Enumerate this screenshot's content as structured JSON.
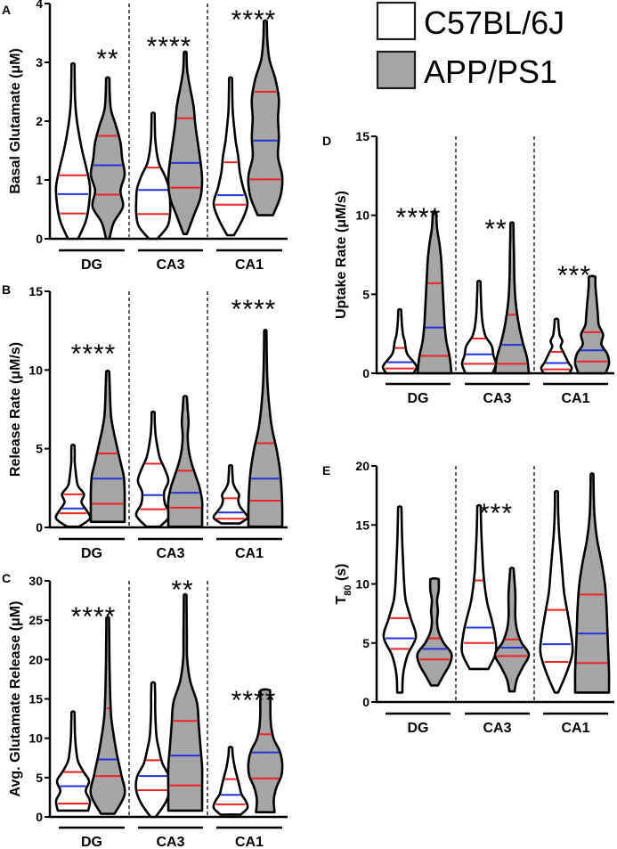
{
  "legend": {
    "items": [
      {
        "label": "C57BL/6J",
        "color": "#ffffff"
      },
      {
        "label": "APP/PS1",
        "color": "#a6a6a6"
      }
    ]
  },
  "colors": {
    "median": "#2233dd",
    "quartile": "#ee2222",
    "outline": "#000000",
    "wt_fill": "#ffffff",
    "app_fill": "#a6a6a6"
  },
  "chart_data": [
    {
      "panel": "A",
      "type": "violin",
      "ylabel": "Basal Glutamate (μM)",
      "ylim": [
        0,
        4
      ],
      "yticks": [
        0,
        1,
        2,
        3,
        4
      ],
      "categories": [
        "DG",
        "CA3",
        "CA1"
      ],
      "series": [
        {
          "name": "C57BL/6J",
          "values": [
            {
              "min": 0.0,
              "q1": 0.43,
              "median": 0.76,
              "q3": 1.08,
              "max": 2.97,
              "profile": [
                0.3,
                0.75,
                0.95,
                1,
                0.8,
                0.55,
                0.35,
                0.2,
                0.12,
                0.1,
                0.09
              ]
            },
            {
              "min": 0.0,
              "q1": 0.42,
              "median": 0.83,
              "q3": 1.21,
              "max": 2.13,
              "profile": [
                0.25,
                0.85,
                1,
                1,
                0.95,
                0.7,
                0.35,
                0.2,
                0.12,
                0.1,
                0.09
              ]
            },
            {
              "min": 0.06,
              "q1": 0.58,
              "median": 0.74,
              "q3": 1.3,
              "max": 2.73,
              "profile": [
                0.2,
                0.7,
                1,
                0.75,
                0.55,
                0.45,
                0.3,
                0.2,
                0.12,
                0.1,
                0.09
              ]
            }
          ]
        },
        {
          "name": "APP/PS1",
          "values": [
            {
              "min": 0.0,
              "q1": 0.75,
              "median": 1.25,
              "q3": 1.75,
              "max": 2.73,
              "profile": [
                0.1,
                0.35,
                0.9,
                0.75,
                1,
                0.85,
                0.75,
                0.5,
                0.2,
                0.12,
                0.1
              ]
            },
            {
              "min": 0.08,
              "q1": 0.87,
              "median": 1.29,
              "q3": 2.05,
              "max": 3.17,
              "profile": [
                0.1,
                0.5,
                0.9,
                1,
                0.9,
                0.75,
                0.6,
                0.5,
                0.3,
                0.12,
                0.08
              ]
            },
            {
              "min": 0.4,
              "q1": 1.01,
              "median": 1.67,
              "q3": 2.5,
              "max": 3.7,
              "profile": [
                0.45,
                0.9,
                1,
                0.75,
                0.8,
                0.75,
                0.8,
                0.6,
                0.25,
                0.12,
                0.09
              ]
            }
          ]
        }
      ],
      "annotations": [
        {
          "category": "DG",
          "text": "**"
        },
        {
          "category": "CA3",
          "text": "****"
        },
        {
          "category": "CA1",
          "text": "****"
        }
      ]
    },
    {
      "panel": "B",
      "type": "violin",
      "ylabel": "Release Rate (μM/s)",
      "ylim": [
        0,
        15
      ],
      "yticks": [
        0,
        5,
        10,
        15
      ],
      "categories": [
        "DG",
        "CA3",
        "CA1"
      ],
      "series": [
        {
          "name": "C57BL/6J",
          "values": [
            {
              "min": 0.05,
              "q1": 0.9,
              "median": 1.2,
              "q3": 2.1,
              "max": 5.2,
              "profile": [
                0.35,
                1,
                0.8,
                0.5,
                0.65,
                0.3,
                0.2,
                0.15,
                0.1,
                0.1,
                0.09
              ]
            },
            {
              "min": 0.05,
              "q1": 1.15,
              "median": 2.05,
              "q3": 4.05,
              "max": 7.3,
              "profile": [
                0.4,
                1,
                0.7,
                0.65,
                0.9,
                0.7,
                0.4,
                0.25,
                0.15,
                0.1,
                0.09
              ]
            },
            {
              "min": 0.25,
              "q1": 0.55,
              "median": 0.95,
              "q3": 1.85,
              "max": 3.9,
              "profile": [
                0.55,
                1,
                0.8,
                0.55,
                0.45,
                0.5,
                0.3,
                0.15,
                0.12,
                0.1,
                0.09
              ]
            }
          ]
        },
        {
          "name": "APP/PS1",
          "values": [
            {
              "min": 0.35,
              "q1": 1.5,
              "median": 3.1,
              "q3": 4.7,
              "max": 9.9,
              "profile": [
                1,
                1,
                1,
                0.95,
                0.75,
                0.55,
                0.35,
                0.2,
                0.15,
                0.12,
                0.09
              ]
            },
            {
              "min": 0.05,
              "q1": 1.25,
              "median": 2.2,
              "q3": 3.6,
              "max": 8.3,
              "profile": [
                1,
                1,
                1,
                0.85,
                0.6,
                0.35,
                0.2,
                0.15,
                0.2,
                0.15,
                0.1
              ]
            },
            {
              "min": 0.05,
              "q1": 1.7,
              "median": 3.1,
              "q3": 5.35,
              "max": 12.5,
              "profile": [
                1,
                1,
                0.95,
                0.85,
                0.65,
                0.4,
                0.25,
                0.15,
                0.1,
                0.08,
                0.07
              ]
            }
          ]
        }
      ],
      "annotations": [
        {
          "category": "DG",
          "text": "****"
        },
        {
          "category": "CA1",
          "text": "****"
        }
      ]
    },
    {
      "panel": "C",
      "type": "violin",
      "ylabel": "Avg. Glutamate Release (μM)",
      "ylim": [
        0,
        30
      ],
      "yticks": [
        0,
        5,
        10,
        15,
        20,
        25,
        30
      ],
      "categories": [
        "DG",
        "CA3",
        "CA1"
      ],
      "series": [
        {
          "name": "C57BL/6J",
          "values": [
            {
              "min": 0.8,
              "q1": 1.7,
              "median": 3.9,
              "q3": 5.7,
              "max": 13.3,
              "profile": [
                0.9,
                1,
                0.75,
                0.95,
                0.6,
                0.3,
                0.2,
                0.14,
                0.11,
                0.1,
                0.09
              ]
            },
            {
              "min": 0.0,
              "q1": 3.4,
              "median": 5.2,
              "q3": 7.2,
              "max": 17.0,
              "profile": [
                0.15,
                0.7,
                1,
                0.95,
                0.55,
                0.35,
                0.2,
                0.15,
                0.12,
                0.12,
                0.1
              ]
            },
            {
              "min": 0.3,
              "q1": 1.6,
              "median": 2.8,
              "q3": 4.8,
              "max": 8.8,
              "profile": [
                0.6,
                1,
                0.9,
                0.65,
                0.55,
                0.45,
                0.35,
                0.25,
                0.18,
                0.12,
                0.1
              ]
            }
          ]
        },
        {
          "name": "APP/PS1",
          "values": [
            {
              "min": 0.4,
              "q1": 5.2,
              "median": 7.3,
              "q3": 13.8,
              "max": 25.3,
              "profile": [
                0.4,
                1,
                0.8,
                0.55,
                0.35,
                0.2,
                0.15,
                0.12,
                0.1,
                0.09,
                0.08
              ]
            },
            {
              "min": 0.8,
              "q1": 4.0,
              "median": 7.8,
              "q3": 12.2,
              "max": 28.2,
              "profile": [
                1,
                1,
                1,
                0.9,
                0.8,
                0.7,
                0.3,
                0.12,
                0.1,
                0.09,
                0.08
              ]
            },
            {
              "min": 0.6,
              "q1": 4.9,
              "median": 8.2,
              "q3": 10.5,
              "max": 16.1,
              "profile": [
                0.55,
                0.5,
                0.65,
                0.95,
                1,
                0.85,
                0.5,
                0.35,
                0.3,
                0.3,
                0.28
              ]
            }
          ]
        }
      ],
      "annotations": [
        {
          "category": "DG",
          "text": "****"
        },
        {
          "category": "CA3",
          "text": "**"
        },
        {
          "category": "CA1",
          "text": "****"
        }
      ]
    },
    {
      "panel": "D",
      "type": "violin",
      "ylabel": "Uptake Rate (μM/s)",
      "ylim": [
        0,
        15
      ],
      "yticks": [
        0,
        5,
        10,
        15
      ],
      "categories": [
        "DG",
        "CA3",
        "CA1"
      ],
      "series": [
        {
          "name": "C57BL/6J",
          "values": [
            {
              "min": 0.0,
              "q1": 0.3,
              "median": 0.7,
              "q3": 1.6,
              "max": 4.0,
              "profile": [
                0.8,
                1,
                0.75,
                0.45,
                0.35,
                0.3,
                0.2,
                0.15,
                0.12,
                0.1,
                0.09
              ]
            },
            {
              "min": 0.0,
              "q1": 0.6,
              "median": 1.2,
              "q3": 2.2,
              "max": 5.8,
              "profile": [
                0.8,
                1,
                0.85,
                0.75,
                0.4,
                0.25,
                0.18,
                0.14,
                0.12,
                0.1,
                0.09
              ]
            },
            {
              "min": 0.0,
              "q1": 0.25,
              "median": 0.65,
              "q3": 1.35,
              "max": 3.4,
              "profile": [
                0.75,
                0.9,
                0.7,
                0.55,
                0.4,
                0.25,
                0.35,
                0.2,
                0.15,
                0.12,
                0.1
              ]
            }
          ]
        },
        {
          "name": "APP/PS1",
          "values": [
            {
              "min": 0.0,
              "q1": 1.1,
              "median": 2.9,
              "q3": 5.7,
              "max": 10.2,
              "profile": [
                1,
                0.9,
                0.7,
                0.6,
                0.55,
                0.5,
                0.45,
                0.4,
                0.3,
                0.15,
                0.1
              ]
            },
            {
              "min": 0.0,
              "q1": 0.6,
              "median": 1.8,
              "q3": 3.7,
              "max": 9.5,
              "profile": [
                1,
                0.9,
                0.65,
                0.45,
                0.3,
                0.2,
                0.15,
                0.13,
                0.12,
                0.1,
                0.09
              ]
            },
            {
              "min": 0.0,
              "q1": 0.75,
              "median": 1.45,
              "q3": 2.6,
              "max": 6.1,
              "profile": [
                0.8,
                1,
                0.9,
                0.55,
                0.65,
                0.4,
                0.35,
                0.3,
                0.25,
                0.2,
                0.2
              ]
            }
          ]
        }
      ],
      "annotations": [
        {
          "category": "DG",
          "text": "****"
        },
        {
          "category": "CA3",
          "text": "**"
        },
        {
          "category": "CA1",
          "text": "***"
        }
      ]
    },
    {
      "panel": "E",
      "type": "violin",
      "ylabel": "T80 (s)",
      "ylim": [
        0,
        20
      ],
      "yticks": [
        0,
        5,
        10,
        15,
        20
      ],
      "categories": [
        "DG",
        "CA3",
        "CA1"
      ],
      "series": [
        {
          "name": "C57BL/6J",
          "values": [
            {
              "min": 0.8,
              "q1": 4.5,
              "median": 5.4,
              "q3": 7.1,
              "max": 16.5,
              "profile": [
                0.15,
                0.2,
                0.45,
                0.95,
                0.65,
                0.35,
                0.25,
                0.2,
                0.15,
                0.12,
                0.1
              ]
            },
            {
              "min": 2.8,
              "q1": 5.0,
              "median": 6.3,
              "q3": 10.3,
              "max": 16.6,
              "profile": [
                0.55,
                1,
                0.95,
                0.75,
                0.5,
                0.35,
                0.25,
                0.2,
                0.15,
                0.12,
                0.1
              ]
            },
            {
              "min": 0.8,
              "q1": 3.4,
              "median": 4.9,
              "q3": 7.8,
              "max": 17.8,
              "profile": [
                0.1,
                0.6,
                0.95,
                0.85,
                0.65,
                0.45,
                0.35,
                0.25,
                0.15,
                0.1,
                0.09
              ]
            }
          ]
        },
        {
          "name": "APP/PS1",
          "values": [
            {
              "min": 1.4,
              "q1": 3.6,
              "median": 4.5,
              "q3": 5.4,
              "max": 10.4,
              "profile": [
                0.2,
                0.55,
                0.9,
                1,
                0.55,
                0.25,
                0.15,
                0.2,
                0.15,
                0.25,
                0.25
              ]
            },
            {
              "min": 0.9,
              "q1": 3.9,
              "median": 4.6,
              "q3": 5.3,
              "max": 11.3,
              "profile": [
                0.15,
                0.3,
                0.65,
                1,
                0.55,
                0.3,
                0.2,
                0.2,
                0.2,
                0.15,
                0.1
              ]
            },
            {
              "min": 0.8,
              "q1": 3.3,
              "median": 5.8,
              "q3": 9.1,
              "max": 19.3,
              "profile": [
                1,
                1,
                0.95,
                0.9,
                0.85,
                0.75,
                0.55,
                0.3,
                0.15,
                0.1,
                0.08
              ]
            }
          ]
        }
      ],
      "annotations": [
        {
          "category": "CA3",
          "text": "***"
        }
      ]
    }
  ]
}
